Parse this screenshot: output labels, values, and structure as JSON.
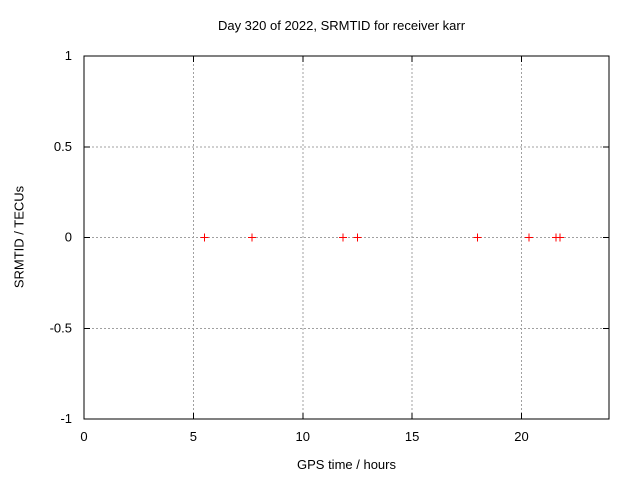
{
  "chart_data": {
    "type": "scatter",
    "title": "Day 320 of 2022, SRMTID for receiver karr",
    "xlabel": "GPS time / hours",
    "ylabel": "SRMTID / TECUs",
    "xlim": [
      0,
      24
    ],
    "ylim": [
      -1,
      1
    ],
    "xticks": [
      0,
      5,
      10,
      15,
      20
    ],
    "yticks": [
      -1,
      -0.5,
      0,
      0.5,
      1
    ],
    "grid": true,
    "legend": false,
    "marker": "plus",
    "marker_color": "#ff0000",
    "grid_color": "#a0a0a0",
    "border_color": "#000000",
    "background_color": "#ffffff",
    "points": [
      [
        5.5,
        0
      ],
      [
        7.67,
        0
      ],
      [
        11.83,
        0
      ],
      [
        12.51,
        0
      ],
      [
        17.98,
        0
      ],
      [
        20.34,
        0
      ],
      [
        21.58,
        0
      ],
      [
        21.76,
        0
      ]
    ]
  }
}
